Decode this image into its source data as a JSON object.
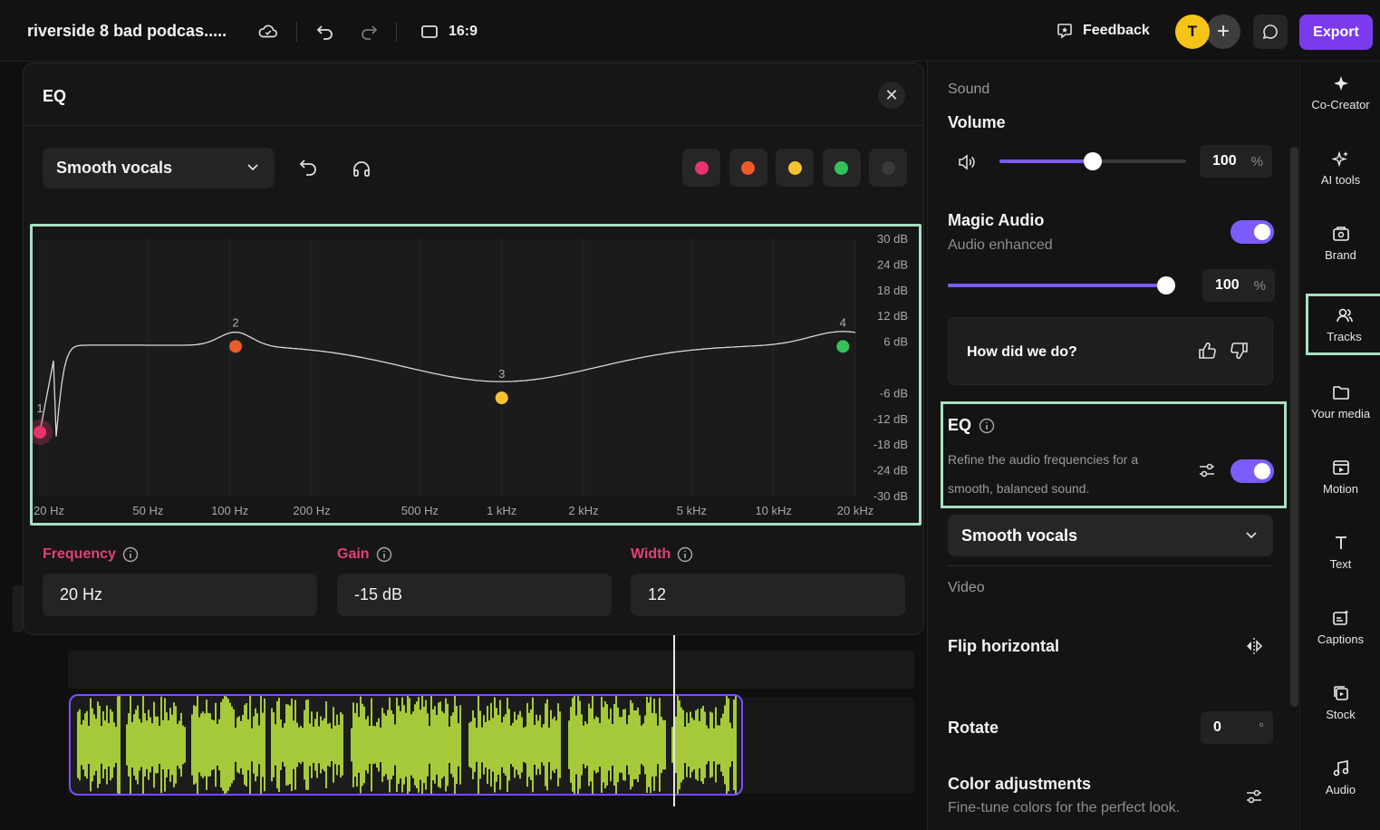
{
  "topbar": {
    "project_title": "riverside 8 bad podcas.....",
    "aspect_ratio": "16:9",
    "feedback_label": "Feedback",
    "avatar_initial": "T",
    "export_label": "Export"
  },
  "eq_panel": {
    "title": "EQ",
    "preset": "Smooth vocals",
    "band_colors": [
      "#e8336c",
      "#ef5a2a",
      "#f5c132",
      "#33c25a",
      "#3a3a3a"
    ],
    "graph": {
      "db_labels": [
        "30 dB",
        "24 dB",
        "18 dB",
        "12 dB",
        "6 dB",
        "-6 dB",
        "-12 dB",
        "-18 dB",
        "-24 dB",
        "-30 dB"
      ],
      "freq_labels": [
        "20 Hz",
        "50 Hz",
        "100 Hz",
        "200 Hz",
        "500 Hz",
        "1 kHz",
        "2 kHz",
        "5 kHz",
        "10 kHz",
        "20 kHz"
      ],
      "bands": [
        {
          "label": "1",
          "freq_hz": 20,
          "gain_db": -15,
          "color": "#e8336c"
        },
        {
          "label": "2",
          "freq_hz": 105,
          "gain_db": 5,
          "color": "#ef5a2a"
        },
        {
          "label": "3",
          "freq_hz": 1000,
          "gain_db": -7,
          "color": "#f5c132"
        },
        {
          "label": "4",
          "freq_hz": 18000,
          "gain_db": 5,
          "color": "#33c25a"
        }
      ]
    },
    "params": {
      "frequency_label": "Frequency",
      "frequency_value": "20 Hz",
      "gain_label": "Gain",
      "gain_value": "-15 dB",
      "width_label": "Width",
      "width_value": "12"
    }
  },
  "properties": {
    "sound_header": "Sound",
    "volume_label": "Volume",
    "volume_value": "100",
    "volume_unit": "%",
    "volume_level": 0.5,
    "magic_audio_label": "Magic Audio",
    "magic_audio_sub": "Audio enhanced",
    "magic_audio_value": "100",
    "magic_audio_unit": "%",
    "magic_audio_level": 1.0,
    "feedback_question": "How did we do?",
    "eq_label": "EQ",
    "eq_desc_1": "Refine the audio frequencies for a",
    "eq_desc_2": "smooth, balanced sound.",
    "eq_preset": "Smooth vocals",
    "video_header": "Video",
    "flip_label": "Flip horizontal",
    "rotate_label": "Rotate",
    "rotate_value": "0",
    "rotate_unit": "°",
    "color_label": "Color adjustments",
    "color_sub": "Fine-tune colors for the perfect look."
  },
  "nav": [
    {
      "label": "Co-Creator",
      "icon": "sparkle-icon"
    },
    {
      "label": "AI tools",
      "icon": "ai-sparkles-icon"
    },
    {
      "label": "Brand",
      "icon": "brand-icon"
    },
    {
      "label": "Tracks",
      "icon": "users-icon"
    },
    {
      "label": "Your media",
      "icon": "folder-icon"
    },
    {
      "label": "Motion",
      "icon": "motion-icon"
    },
    {
      "label": "Text",
      "icon": "text-icon"
    },
    {
      "label": "Captions",
      "icon": "captions-icon"
    },
    {
      "label": "Stock",
      "icon": "stock-icon"
    },
    {
      "label": "Audio",
      "icon": "music-note-icon"
    }
  ],
  "colors": {
    "accent": "#7c5cff",
    "export": "#7c3aed",
    "waveform": "#c8f542",
    "highlight": "#a7e0c0",
    "param_label": "#e0407a"
  }
}
